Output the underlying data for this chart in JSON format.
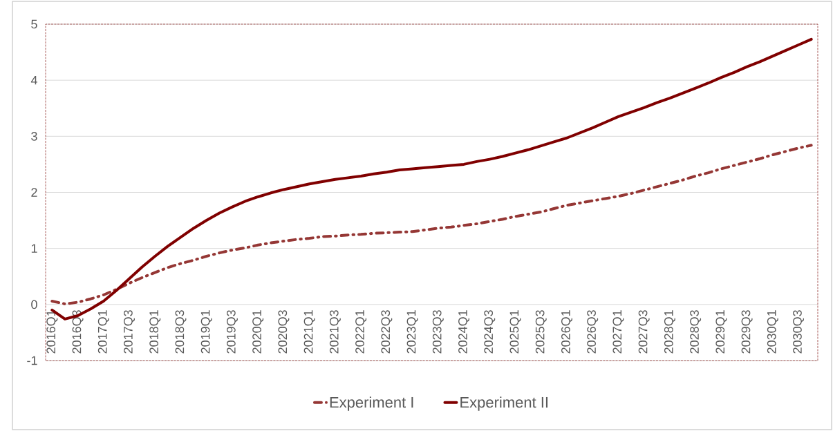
{
  "chart_data": {
    "type": "line",
    "categories": [
      "2016Q1",
      null,
      "2016Q3",
      null,
      "2017Q1",
      null,
      "2017Q3",
      null,
      "2018Q1",
      null,
      "2018Q3",
      null,
      "2019Q1",
      null,
      "2019Q3",
      null,
      "2020Q1",
      null,
      "2020Q3",
      null,
      "2021Q1",
      null,
      "2021Q3",
      null,
      "2022Q1",
      null,
      "2022Q3",
      null,
      "2023Q1",
      null,
      "2023Q3",
      null,
      "2024Q1",
      null,
      "2024Q3",
      null,
      "2025Q1",
      null,
      "2025Q3",
      null,
      "2026Q1",
      null,
      "2026Q3",
      null,
      "2027Q1",
      null,
      "2027Q3",
      null,
      "2028Q1",
      null,
      "2028Q3",
      null,
      "2029Q1",
      null,
      "2029Q3",
      null,
      "2030Q1",
      null,
      "2030Q3",
      null
    ],
    "series": [
      {
        "name": "Experiment I",
        "color": "#953735",
        "line_style": "dashed",
        "values": [
          0.06,
          0.01,
          0.04,
          0.1,
          0.17,
          0.27,
          0.38,
          0.48,
          0.57,
          0.66,
          0.73,
          0.79,
          0.86,
          0.92,
          0.97,
          1.01,
          1.06,
          1.1,
          1.13,
          1.16,
          1.18,
          1.21,
          1.22,
          1.24,
          1.25,
          1.27,
          1.28,
          1.29,
          1.3,
          1.33,
          1.36,
          1.38,
          1.41,
          1.44,
          1.48,
          1.52,
          1.57,
          1.61,
          1.65,
          1.71,
          1.77,
          1.81,
          1.85,
          1.89,
          1.93,
          1.98,
          2.04,
          2.1,
          2.16,
          2.22,
          2.29,
          2.35,
          2.42,
          2.48,
          2.54,
          2.6,
          2.67,
          2.73,
          2.79,
          2.84
        ]
      },
      {
        "name": "Experiment II",
        "color": "#800000",
        "line_style": "solid",
        "values": [
          -0.1,
          -0.26,
          -0.2,
          -0.08,
          0.06,
          0.25,
          0.46,
          0.67,
          0.86,
          1.04,
          1.2,
          1.36,
          1.5,
          1.63,
          1.74,
          1.84,
          1.92,
          1.99,
          2.05,
          2.1,
          2.15,
          2.19,
          2.23,
          2.26,
          2.29,
          2.33,
          2.36,
          2.4,
          2.42,
          2.44,
          2.46,
          2.48,
          2.5,
          2.55,
          2.59,
          2.64,
          2.7,
          2.76,
          2.83,
          2.9,
          2.97,
          3.06,
          3.15,
          3.25,
          3.35,
          3.43,
          3.51,
          3.6,
          3.68,
          3.77,
          3.86,
          3.95,
          4.05,
          4.14,
          4.24,
          4.33,
          4.43,
          4.53,
          4.63,
          4.73
        ]
      }
    ],
    "ylim": [
      -1,
      5
    ],
    "yticks": [
      -1,
      0,
      1,
      2,
      3,
      4,
      5
    ],
    "grid": "y",
    "legend": "bottom"
  }
}
